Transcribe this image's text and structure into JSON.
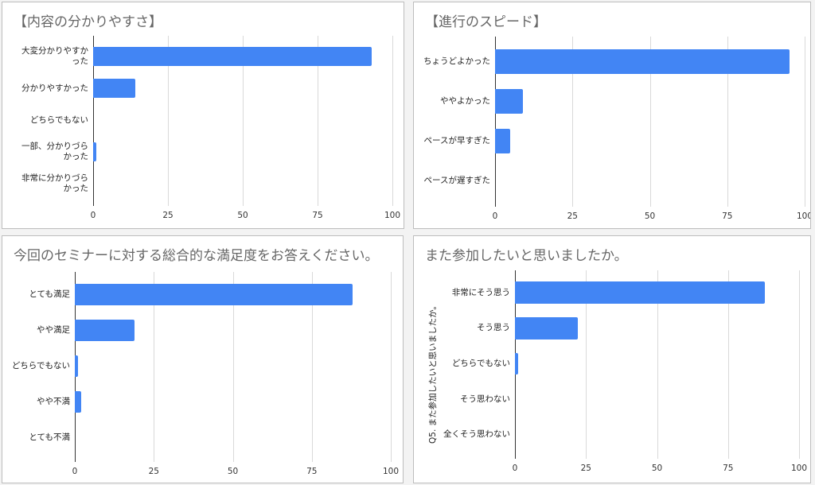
{
  "chart_data": [
    {
      "type": "bar",
      "orientation": "horizontal",
      "title": "【内容の分かりやすさ】",
      "categories": [
        "大変分かりやすかった",
        "分かりやすかった",
        "どちらでもない",
        "一部、分かりづらかった",
        "非常に分かりづらかった"
      ],
      "values": [
        93,
        14,
        0,
        1,
        0
      ],
      "color": "#4285f4",
      "xlim": [
        0,
        100
      ],
      "xticks": [
        0,
        25,
        50,
        75,
        100
      ],
      "grid": true
    },
    {
      "type": "bar",
      "orientation": "horizontal",
      "title": "【進行のスピード】",
      "categories": [
        "ちょうどよかった",
        "ややよかった",
        "ペースが早すぎた",
        "ペースが遅すぎた"
      ],
      "values": [
        95,
        9,
        5,
        0
      ],
      "color": "#4285f4",
      "xlim": [
        0,
        100
      ],
      "xticks": [
        0,
        25,
        50,
        75,
        100
      ],
      "grid": true
    },
    {
      "type": "bar",
      "orientation": "horizontal",
      "title": "今回のセミナーに対する総合的な満足度をお答えください。",
      "categories": [
        "とても満足",
        "やや満足",
        "どちらでもない",
        "やや不満",
        "とても不満"
      ],
      "values": [
        88,
        19,
        1,
        2,
        0
      ],
      "color": "#4285f4",
      "xlim": [
        0,
        100
      ],
      "xticks": [
        0,
        25,
        50,
        75,
        100
      ],
      "grid": true
    },
    {
      "type": "bar",
      "orientation": "horizontal",
      "title": "また参加したいと思いましたか。",
      "y_label": "Q5. また参加したいと思いましたか。",
      "categories": [
        "非常にそう思う",
        "そう思う",
        "どちらでもない",
        "そう思わない",
        "全くそう思わない"
      ],
      "values": [
        88,
        22,
        1,
        0,
        0
      ],
      "color": "#4285f4",
      "xlim": [
        0,
        100
      ],
      "xticks": [
        0,
        25,
        50,
        75,
        100
      ],
      "grid": true
    }
  ]
}
